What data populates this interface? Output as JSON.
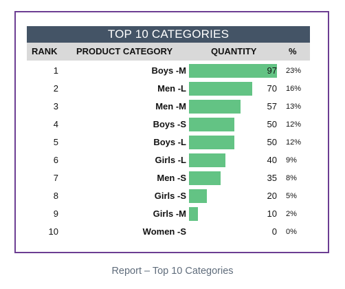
{
  "title": "TOP 10 CATEGORIES",
  "headers": {
    "rank": "RANK",
    "category": "PRODUCT CATEGORY",
    "quantity": "QUANTITY",
    "percent": "%"
  },
  "caption": "Report – Top 10 Categories",
  "colors": {
    "title_bg": "#445466",
    "header_bg": "#d9d9d9",
    "bar": "#63c384",
    "frame": "#6c3d92",
    "caption": "#5f6c7b"
  },
  "chart_data": {
    "type": "bar",
    "title": "TOP 10 CATEGORIES",
    "xlabel": "QUANTITY",
    "ylabel": "PRODUCT CATEGORY",
    "orientation": "horizontal",
    "xlim": [
      0,
      97
    ],
    "rows": [
      {
        "rank": "1",
        "category": "Boys -M",
        "quantity": 97,
        "quantity_label": "97",
        "percent": "23%"
      },
      {
        "rank": "2",
        "category": "Men -L",
        "quantity": 70,
        "quantity_label": "70",
        "percent": "16%"
      },
      {
        "rank": "3",
        "category": "Men -M",
        "quantity": 57,
        "quantity_label": "57",
        "percent": "13%"
      },
      {
        "rank": "4",
        "category": "Boys -S",
        "quantity": 50,
        "quantity_label": "50",
        "percent": "12%"
      },
      {
        "rank": "5",
        "category": "Boys -L",
        "quantity": 50,
        "quantity_label": "50",
        "percent": "12%"
      },
      {
        "rank": "6",
        "category": "Girls -L",
        "quantity": 40,
        "quantity_label": "40",
        "percent": "9%"
      },
      {
        "rank": "7",
        "category": "Men -S",
        "quantity": 35,
        "quantity_label": "35",
        "percent": "8%"
      },
      {
        "rank": "8",
        "category": "Girls -S",
        "quantity": 20,
        "quantity_label": "20",
        "percent": "5%"
      },
      {
        "rank": "9",
        "category": "Girls -M",
        "quantity": 10,
        "quantity_label": "10",
        "percent": "2%"
      },
      {
        "rank": "10",
        "category": "Women -S",
        "quantity": 0,
        "quantity_label": "0",
        "percent": "0%"
      }
    ]
  }
}
